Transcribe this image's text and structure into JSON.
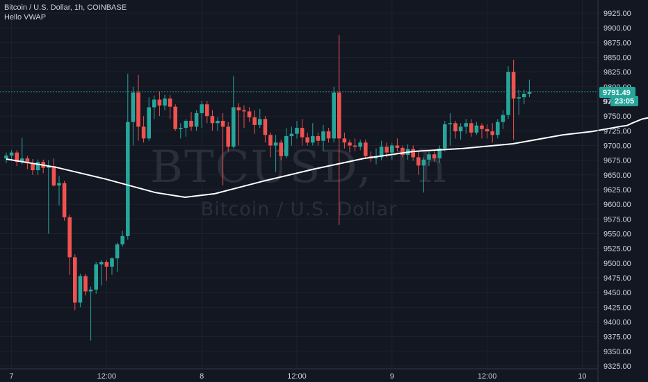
{
  "legend": {
    "line1": "Bitcoin / U.S. Dollar, 1h, COINBASE",
    "line2": "Hello VWAP"
  },
  "watermark": {
    "symbol": "BTCUSD, 1h",
    "name": "Bitcoin / U.S. Dollar"
  },
  "price_tag": {
    "price": "9791.49",
    "countdown": "23:05",
    "hidden_label": "97"
  },
  "colors": {
    "background": "#131722",
    "up": "#26a69a",
    "down": "#ef5350",
    "grid": "#1e222d",
    "vwap": "#ffffff",
    "price_line": "#26a69a"
  },
  "chart_data": {
    "type": "candlestick",
    "title": "Bitcoin / U.S. Dollar, 1h, COINBASE",
    "indicator": "Hello VWAP",
    "ylim": [
      9320,
      9945
    ],
    "y_ticks": [
      "9925.00",
      "9900.00",
      "9875.00",
      "9850.00",
      "9825.00",
      "9800.00",
      "9775.00",
      "9750.00",
      "9725.00",
      "9700.00",
      "9675.00",
      "9650.00",
      "9625.00",
      "9600.00",
      "9575.00",
      "9550.00",
      "9525.00",
      "9500.00",
      "9475.00",
      "9450.00",
      "9425.00",
      "9400.00",
      "9375.00",
      "9350.00",
      "9325.00"
    ],
    "x_ticks": [
      {
        "label": "7",
        "bar": 1
      },
      {
        "label": "12:00",
        "bar": 19
      },
      {
        "label": "8",
        "bar": 37
      },
      {
        "label": "12:00",
        "bar": 55
      },
      {
        "label": "9",
        "bar": 73
      },
      {
        "label": "12:00",
        "bar": 91
      },
      {
        "label": "10",
        "bar": 109
      }
    ],
    "current_price": 9791.49,
    "candles": [
      [
        9678,
        9688,
        9670,
        9683
      ],
      [
        9683,
        9692,
        9675,
        9688
      ],
      [
        9688,
        9692,
        9665,
        9672
      ],
      [
        9672,
        9713,
        9668,
        9678
      ],
      [
        9678,
        9682,
        9660,
        9670
      ],
      [
        9670,
        9677,
        9650,
        9658
      ],
      [
        9658,
        9676,
        9650,
        9672
      ],
      [
        9672,
        9676,
        9653,
        9662
      ],
      [
        9662,
        9675,
        9550,
        9665
      ],
      [
        9665,
        9678,
        9630,
        9632
      ],
      [
        9632,
        9648,
        9598,
        9636
      ],
      [
        9636,
        9640,
        9572,
        9578
      ],
      [
        9578,
        9582,
        9480,
        9510
      ],
      [
        9510,
        9515,
        9420,
        9433
      ],
      [
        9433,
        9482,
        9425,
        9478
      ],
      [
        9478,
        9482,
        9445,
        9452
      ],
      [
        9452,
        9460,
        9368,
        9455
      ],
      [
        9455,
        9502,
        9448,
        9498
      ],
      [
        9498,
        9505,
        9462,
        9502
      ],
      [
        9502,
        9505,
        9470,
        9494
      ],
      [
        9494,
        9510,
        9480,
        9508
      ],
      [
        9508,
        9535,
        9485,
        9532
      ],
      [
        9532,
        9555,
        9528,
        9546
      ],
      [
        9546,
        9822,
        9540,
        9740
      ],
      [
        9740,
        9800,
        9700,
        9790
      ],
      [
        9790,
        9820,
        9708,
        9732
      ],
      [
        9732,
        9750,
        9705,
        9712
      ],
      [
        9712,
        9782,
        9708,
        9765
      ],
      [
        9765,
        9785,
        9745,
        9778
      ],
      [
        9778,
        9792,
        9750,
        9768
      ],
      [
        9768,
        9786,
        9760,
        9780
      ],
      [
        9780,
        9786,
        9745,
        9766
      ],
      [
        9766,
        9770,
        9725,
        9728
      ],
      [
        9728,
        9738,
        9712,
        9730
      ],
      [
        9730,
        9745,
        9715,
        9742
      ],
      [
        9742,
        9757,
        9725,
        9732
      ],
      [
        9732,
        9760,
        9725,
        9755
      ],
      [
        9755,
        9776,
        9730,
        9770
      ],
      [
        9770,
        9776,
        9738,
        9750
      ],
      [
        9750,
        9760,
        9725,
        9738
      ],
      [
        9738,
        9748,
        9725,
        9742
      ],
      [
        9742,
        9755,
        9632,
        9732
      ],
      [
        9732,
        9740,
        9690,
        9698
      ],
      [
        9698,
        9818,
        9695,
        9765
      ],
      [
        9765,
        9772,
        9700,
        9760
      ],
      [
        9760,
        9768,
        9730,
        9758
      ],
      [
        9758,
        9765,
        9740,
        9748
      ],
      [
        9748,
        9760,
        9720,
        9735
      ],
      [
        9735,
        9762,
        9730,
        9745
      ],
      [
        9745,
        9750,
        9705,
        9718
      ],
      [
        9718,
        9722,
        9680,
        9700
      ],
      [
        9700,
        9718,
        9655,
        9705
      ],
      [
        9705,
        9710,
        9675,
        9682
      ],
      [
        9682,
        9730,
        9678,
        9716
      ],
      [
        9716,
        9732,
        9700,
        9720
      ],
      [
        9720,
        9742,
        9712,
        9730
      ],
      [
        9730,
        9745,
        9700,
        9714
      ],
      [
        9714,
        9722,
        9700,
        9705
      ],
      [
        9705,
        9738,
        9700,
        9716
      ],
      [
        9716,
        9722,
        9700,
        9708
      ],
      [
        9708,
        9735,
        9690,
        9724
      ],
      [
        9724,
        9730,
        9705,
        9712
      ],
      [
        9712,
        9800,
        9705,
        9790
      ],
      [
        9790,
        9888,
        9565,
        9712
      ],
      [
        9712,
        9722,
        9695,
        9705
      ],
      [
        9705,
        9710,
        9688,
        9700
      ],
      [
        9700,
        9712,
        9690,
        9698
      ],
      [
        9698,
        9710,
        9692,
        9705
      ],
      [
        9705,
        9710,
        9678,
        9682
      ],
      [
        9682,
        9690,
        9672,
        9678
      ],
      [
        9678,
        9695,
        9668,
        9680
      ],
      [
        9680,
        9708,
        9675,
        9698
      ],
      [
        9698,
        9705,
        9680,
        9688
      ],
      [
        9688,
        9704,
        9676,
        9700
      ],
      [
        9700,
        9712,
        9690,
        9696
      ],
      [
        9696,
        9700,
        9680,
        9684
      ],
      [
        9684,
        9702,
        9676,
        9694
      ],
      [
        9694,
        9700,
        9674,
        9680
      ],
      [
        9680,
        9690,
        9650,
        9666
      ],
      [
        9666,
        9680,
        9620,
        9676
      ],
      [
        9676,
        9690,
        9665,
        9685
      ],
      [
        9685,
        9690,
        9672,
        9678
      ],
      [
        9678,
        9700,
        9670,
        9695
      ],
      [
        9695,
        9742,
        9690,
        9736
      ],
      [
        9736,
        9755,
        9700,
        9738
      ],
      [
        9738,
        9742,
        9712,
        9724
      ],
      [
        9724,
        9738,
        9710,
        9732
      ],
      [
        9732,
        9745,
        9720,
        9738
      ],
      [
        9738,
        9745,
        9715,
        9722
      ],
      [
        9722,
        9740,
        9718,
        9734
      ],
      [
        9734,
        9738,
        9712,
        9728
      ],
      [
        9728,
        9736,
        9712,
        9724
      ],
      [
        9724,
        9738,
        9705,
        9718
      ],
      [
        9718,
        9745,
        9712,
        9740
      ],
      [
        9740,
        9760,
        9728,
        9752
      ],
      [
        9752,
        9835,
        9745,
        9825
      ],
      [
        9825,
        9846,
        9710,
        9780
      ],
      [
        9780,
        9795,
        9752,
        9782
      ],
      [
        9782,
        9795,
        9770,
        9788
      ],
      [
        9788,
        9812,
        9782,
        9791
      ]
    ],
    "vwap_line": [
      [
        0,
        9677
      ],
      [
        10,
        9663
      ],
      [
        20,
        9643
      ],
      [
        30,
        9620
      ],
      [
        36,
        9612
      ],
      [
        42,
        9618
      ],
      [
        52,
        9640
      ],
      [
        62,
        9660
      ],
      [
        72,
        9678
      ],
      [
        82,
        9690
      ],
      [
        92,
        9695
      ],
      [
        102,
        9703
      ],
      [
        112,
        9718
      ],
      [
        118,
        9724
      ],
      [
        124,
        9733
      ],
      [
        125,
        9734
      ],
      [
        126,
        9738
      ],
      [
        128,
        9745
      ],
      [
        134,
        9755
      ],
      [
        145,
        9763
      ]
    ]
  }
}
